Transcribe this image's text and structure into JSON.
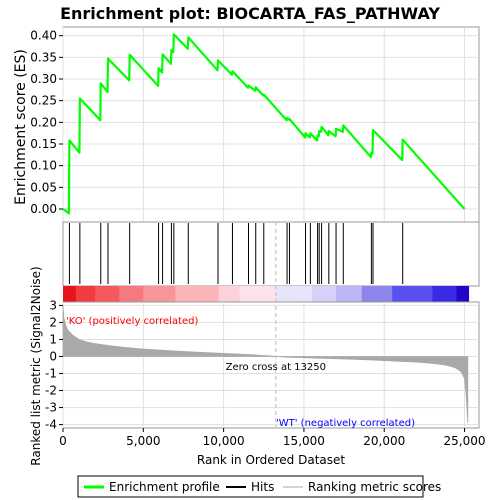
{
  "chart_data": {
    "type": "line",
    "title": "Enrichment plot: BIOCARTA_FAS_PATHWAY",
    "xlabel": "Rank in Ordered Dataset",
    "ylabel_top": "Enrichment score (ES)",
    "ylabel_bottom": "Ranked list metric (Signal2Noise)",
    "xlim": [
      0,
      25900
    ],
    "ylim_top": [
      -0.03,
      0.42
    ],
    "ylim_bottom": [
      -4.2,
      3.2
    ],
    "xticks": [
      0,
      5000,
      10000,
      15000,
      20000,
      25000
    ],
    "xtick_labels": [
      "0",
      "5,000",
      "10,000",
      "15,000",
      "20,000",
      "25,000"
    ],
    "yticks_top": [
      0.0,
      0.05,
      0.1,
      0.15,
      0.2,
      0.25,
      0.3,
      0.35,
      0.4
    ],
    "ytick_labels_top": [
      "0.00",
      "0.05",
      "0.10",
      "0.15",
      "0.20",
      "0.25",
      "0.30",
      "0.35",
      "0.40"
    ],
    "yticks_bottom": [
      -4,
      -3,
      -2,
      -1,
      0,
      1,
      2,
      3
    ],
    "ytick_labels_bottom": [
      "-4",
      "-3",
      "-2",
      "-1",
      "0",
      "1",
      "2",
      "3"
    ],
    "grid": true,
    "hits": [
      400,
      1050,
      2350,
      2800,
      4150,
      5950,
      6200,
      6750,
      6900,
      7800,
      9650,
      10550,
      11550,
      12000,
      12500,
      13950,
      14100,
      15100,
      15400,
      15850,
      15950,
      16100,
      16550,
      17000,
      17450,
      19200,
      19300,
      21150
    ],
    "es_curve": [
      [
        0,
        0.0
      ],
      [
        370,
        -0.01
      ],
      [
        400,
        0.158
      ],
      [
        1020,
        0.13
      ],
      [
        1050,
        0.255
      ],
      [
        2320,
        0.205
      ],
      [
        2350,
        0.29
      ],
      [
        2770,
        0.27
      ],
      [
        2800,
        0.347
      ],
      [
        4120,
        0.297
      ],
      [
        4150,
        0.356
      ],
      [
        5920,
        0.284
      ],
      [
        5950,
        0.325
      ],
      [
        6170,
        0.315
      ],
      [
        6200,
        0.357
      ],
      [
        6720,
        0.335
      ],
      [
        6750,
        0.367
      ],
      [
        6870,
        0.362
      ],
      [
        6900,
        0.403
      ],
      [
        7770,
        0.37
      ],
      [
        7800,
        0.396
      ],
      [
        9620,
        0.32
      ],
      [
        9650,
        0.343
      ],
      [
        10520,
        0.31
      ],
      [
        10550,
        0.318
      ],
      [
        11520,
        0.28
      ],
      [
        11550,
        0.285
      ],
      [
        11970,
        0.273
      ],
      [
        12000,
        0.281
      ],
      [
        12470,
        0.262
      ],
      [
        12500,
        0.264
      ],
      [
        13920,
        0.205
      ],
      [
        13950,
        0.21
      ],
      [
        14070,
        0.206
      ],
      [
        14100,
        0.208
      ],
      [
        15070,
        0.165
      ],
      [
        15100,
        0.175
      ],
      [
        15370,
        0.165
      ],
      [
        15400,
        0.175
      ],
      [
        15820,
        0.158
      ],
      [
        15850,
        0.17
      ],
      [
        15920,
        0.168
      ],
      [
        15950,
        0.18
      ],
      [
        16070,
        0.178
      ],
      [
        16100,
        0.19
      ],
      [
        16520,
        0.17
      ],
      [
        16550,
        0.18
      ],
      [
        16970,
        0.168
      ],
      [
        17000,
        0.185
      ],
      [
        17420,
        0.178
      ],
      [
        17450,
        0.193
      ],
      [
        19170,
        0.12
      ],
      [
        19200,
        0.13
      ],
      [
        19270,
        0.128
      ],
      [
        19300,
        0.182
      ],
      [
        21120,
        0.113
      ],
      [
        21150,
        0.16
      ],
      [
        25000,
        0.0
      ]
    ],
    "metric_curve": [
      [
        0,
        3.0
      ],
      [
        50,
        2.3
      ],
      [
        150,
        1.9
      ],
      [
        300,
        1.55
      ],
      [
        600,
        1.25
      ],
      [
        1000,
        1.0
      ],
      [
        1500,
        0.85
      ],
      [
        2000,
        0.75
      ],
      [
        3000,
        0.62
      ],
      [
        4000,
        0.52
      ],
      [
        5000,
        0.44
      ],
      [
        6000,
        0.38
      ],
      [
        7000,
        0.32
      ],
      [
        8000,
        0.27
      ],
      [
        9000,
        0.22
      ],
      [
        10000,
        0.18
      ],
      [
        11000,
        0.14
      ],
      [
        12000,
        0.09
      ],
      [
        13000,
        0.03
      ],
      [
        13250,
        0.0
      ],
      [
        14000,
        -0.04
      ],
      [
        15000,
        -0.07
      ],
      [
        16000,
        -0.1
      ],
      [
        17000,
        -0.13
      ],
      [
        18000,
        -0.16
      ],
      [
        19000,
        -0.2
      ],
      [
        20000,
        -0.24
      ],
      [
        21000,
        -0.28
      ],
      [
        22000,
        -0.33
      ],
      [
        23000,
        -0.4
      ],
      [
        23800,
        -0.5
      ],
      [
        24400,
        -0.65
      ],
      [
        24800,
        -0.9
      ],
      [
        25000,
        -1.3
      ],
      [
        25100,
        -2.3
      ],
      [
        25200,
        -3.9
      ]
    ],
    "zero_cross_label": "Zero cross at 13250",
    "positive_label": "'KO' (positively correlated)",
    "negative_label": "'WT' (negatively correlated)",
    "colors": {
      "curve": "#00ff00",
      "positive_text": "#ff0000",
      "negative_text": "#0000ff",
      "grid": "#e0e0e0",
      "metric_fill": "#a9a9a9",
      "zero_line": "#cccccc"
    },
    "colorbar": [
      {
        "to": 800,
        "color": "#e8141b"
      },
      {
        "to": 2000,
        "color": "#f23b40"
      },
      {
        "to": 3500,
        "color": "#f4595d"
      },
      {
        "to": 5000,
        "color": "#f57a7d"
      },
      {
        "to": 7000,
        "color": "#f79598"
      },
      {
        "to": 9700,
        "color": "#f9b5b8"
      },
      {
        "to": 11000,
        "color": "#fbd2dc"
      },
      {
        "to": 13300,
        "color": "#fde2ee"
      },
      {
        "to": 15500,
        "color": "#e7e4fa"
      },
      {
        "to": 17000,
        "color": "#d5d1f8"
      },
      {
        "to": 18600,
        "color": "#bbb7f4"
      },
      {
        "to": 20500,
        "color": "#8b85ec"
      },
      {
        "to": 23000,
        "color": "#5a4ff0"
      },
      {
        "to": 24500,
        "color": "#3a2ae4"
      },
      {
        "to": 25250,
        "color": "#2006c8"
      }
    ],
    "legend": [
      {
        "label": "Enrichment profile",
        "swatch": "line",
        "color": "#00ff00"
      },
      {
        "label": "Hits",
        "swatch": "line",
        "color": "#000000"
      },
      {
        "label": "Ranking metric scores",
        "swatch": "line",
        "color": "#d3d3d3"
      }
    ]
  }
}
